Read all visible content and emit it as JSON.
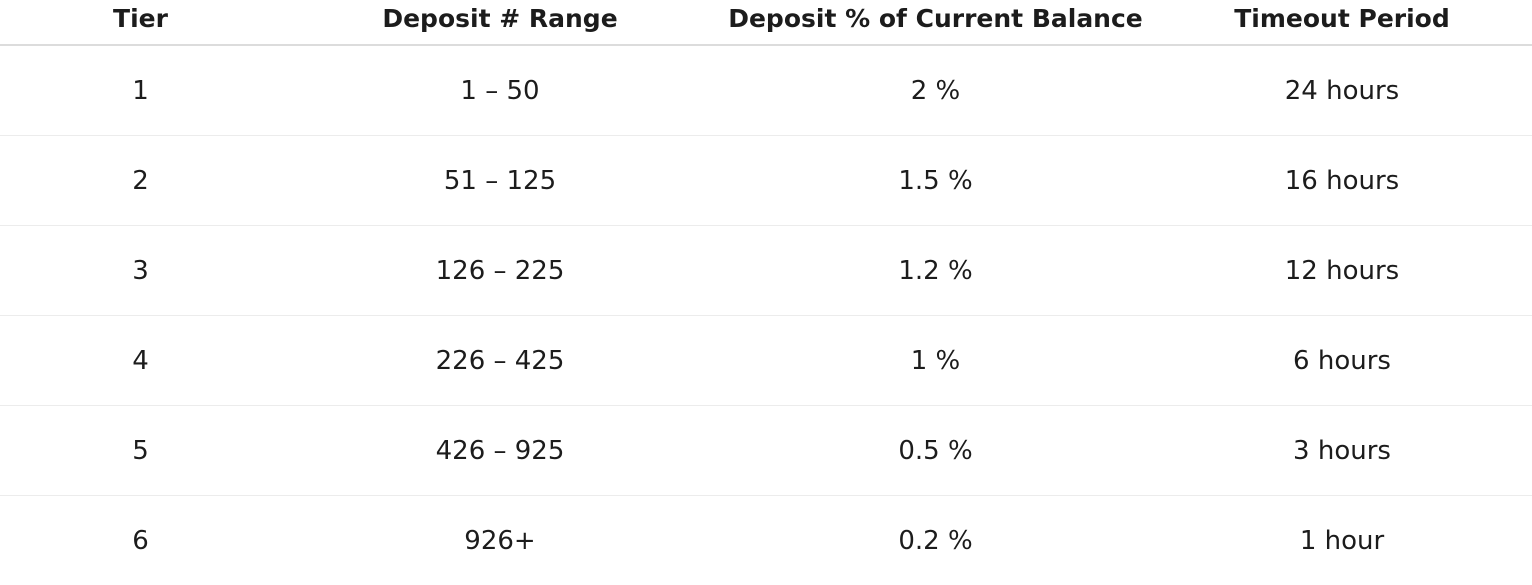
{
  "table": {
    "headers": [
      "Tier",
      "Deposit # Range",
      "Deposit % of Current Balance",
      "Timeout Period"
    ],
    "rows": [
      [
        "1",
        "1 – 50",
        "2 %",
        "24 hours"
      ],
      [
        "2",
        "51 – 125",
        "1.5 %",
        "16 hours"
      ],
      [
        "3",
        "126 – 225",
        "1.2 %",
        "12 hours"
      ],
      [
        "4",
        "226 – 425",
        "1 %",
        "6 hours"
      ],
      [
        "5",
        "426 – 925",
        "0.5 %",
        "3 hours"
      ],
      [
        "6",
        "926+",
        "0.2 %",
        "1 hour"
      ]
    ]
  },
  "colors": {
    "text": "#1c1c1c",
    "header_rule": "#dcdcdc",
    "row_rule": "#ececec"
  }
}
